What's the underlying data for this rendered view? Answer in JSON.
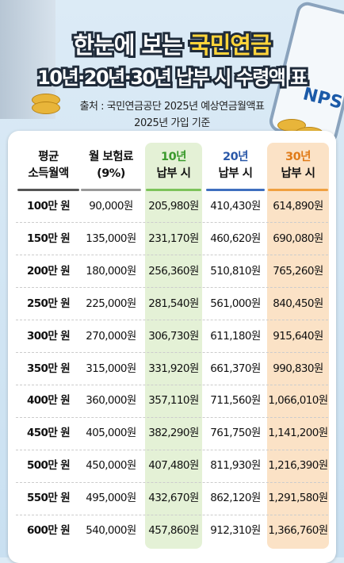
{
  "header": {
    "logo": "NPS",
    "title_line1": [
      "한눈에 보는",
      "국민연금"
    ],
    "title_line2": "10년·20년·30년 납부 시 수령액 표",
    "source": [
      "출처 : 국민연금공단 2025년 예상연금월액표",
      "2025년 가입 기준"
    ]
  },
  "table": {
    "headers": [
      [
        "평균",
        "소득월액"
      ],
      [
        "월 보험료",
        "(9%)"
      ],
      [
        "10년",
        "납부 시"
      ],
      [
        "20년",
        "납부 시"
      ],
      [
        "30년",
        "납부 시"
      ]
    ],
    "rows": [
      [
        "100만 원",
        "90,000원",
        "205,980원",
        "410,430원",
        "614,890원"
      ],
      [
        "150만 원",
        "135,000원",
        "231,170원",
        "460,620원",
        "690,080원"
      ],
      [
        "200만 원",
        "180,000원",
        "256,360원",
        "510,810원",
        "765,260원"
      ],
      [
        "250만 원",
        "225,000원",
        "281,540원",
        "561,000원",
        "840,450원"
      ],
      [
        "300만 원",
        "270,000원",
        "306,730원",
        "611,180원",
        "915,640원"
      ],
      [
        "350만 원",
        "315,000원",
        "331,920원",
        "661,370원",
        "990,830원"
      ],
      [
        "400만 원",
        "360,000원",
        "357,110원",
        "711,560원",
        "1,066,010원"
      ],
      [
        "450만 원",
        "405,000원",
        "382,290원",
        "761,750원",
        "1,141,200원"
      ],
      [
        "500만 원",
        "450,000원",
        "407,480원",
        "811,930원",
        "1,216,390원"
      ],
      [
        "550만 원",
        "495,000원",
        "432,670원",
        "862,120원",
        "1,291,580원"
      ],
      [
        "600만 원",
        "540,000원",
        "457,860원",
        "912,310원",
        "1,366,760원"
      ]
    ]
  }
}
